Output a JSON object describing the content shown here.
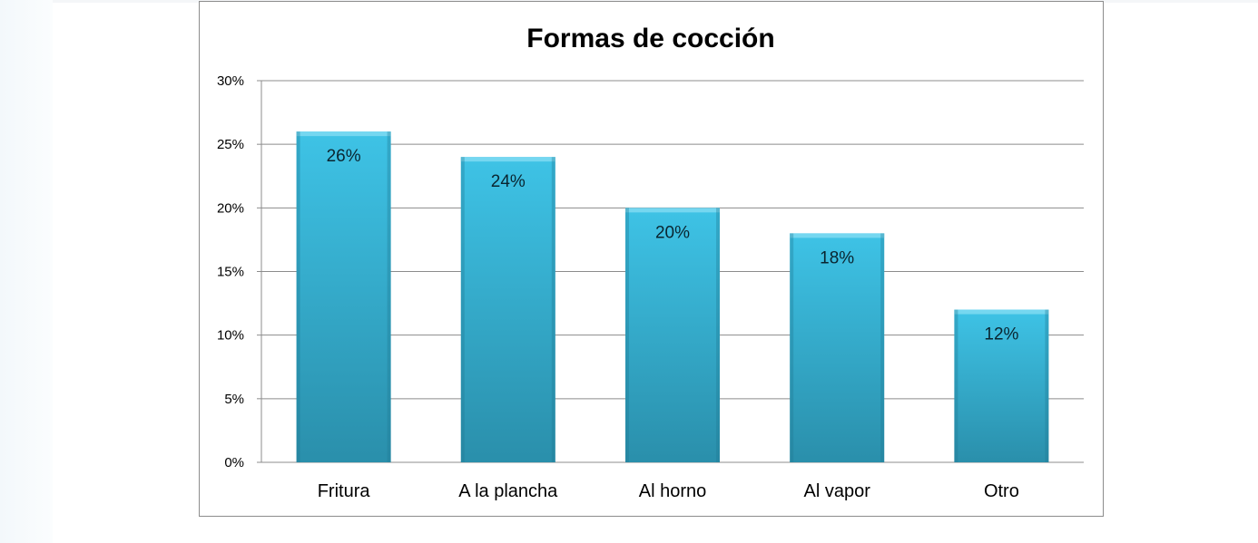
{
  "chart_data": {
    "type": "bar",
    "title": "Formas de cocción",
    "xlabel": "",
    "ylabel": "",
    "categories": [
      "Fritura",
      "A la plancha",
      "Al horno",
      "Al vapor",
      "Otro"
    ],
    "values": [
      26,
      24,
      20,
      18,
      12
    ],
    "data_labels": [
      "26%",
      "24%",
      "20%",
      "18%",
      "12%"
    ],
    "ylim": [
      0,
      30
    ],
    "yticks": [
      0,
      5,
      10,
      15,
      20,
      25,
      30
    ],
    "ytick_labels": [
      "0%",
      "5%",
      "10%",
      "15%",
      "20%",
      "25%",
      "30%"
    ],
    "grid": true,
    "legend": "none",
    "colors": {
      "bar_top": "#3ec3e6",
      "bar_bottom": "#2a8fab",
      "bar_cap": "#7fdaf2",
      "grid": "#8c8c8c"
    }
  }
}
